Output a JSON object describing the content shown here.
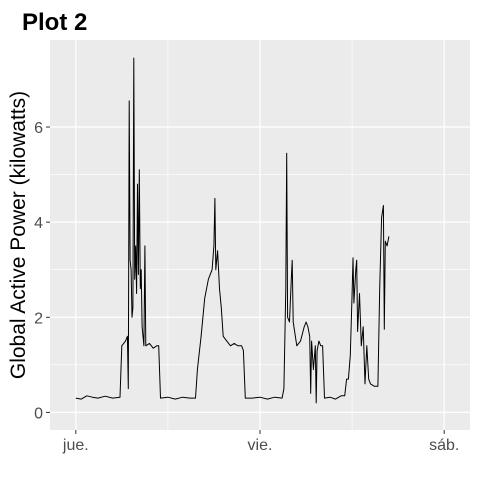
{
  "chart_data": {
    "type": "line",
    "title": "Plot 2",
    "xlabel": "",
    "ylabel": "Global Active Power (kilowatts)",
    "x_tick_labels": [
      "jue.",
      "vie.",
      "sáb."
    ],
    "x_range_days": [
      -0.14,
      2.14
    ],
    "x_ticks_days": [
      0,
      1,
      2
    ],
    "y_ticks": [
      0,
      2,
      4,
      6
    ],
    "ylim": [
      -0.37,
      7.83
    ],
    "grid": true,
    "line_color": "#000000",
    "series": [
      {
        "values": [
          [
            0.0,
            0.3
          ],
          [
            0.03,
            0.28
          ],
          [
            0.06,
            0.35
          ],
          [
            0.09,
            0.32
          ],
          [
            0.12,
            0.3
          ],
          [
            0.16,
            0.34
          ],
          [
            0.2,
            0.3
          ],
          [
            0.24,
            0.32
          ],
          [
            0.25,
            1.4
          ],
          [
            0.27,
            1.5
          ],
          [
            0.28,
            1.6
          ],
          [
            0.285,
            0.5
          ],
          [
            0.29,
            6.55
          ],
          [
            0.295,
            3.2
          ],
          [
            0.3,
            3.0
          ],
          [
            0.305,
            2.0
          ],
          [
            0.31,
            2.2
          ],
          [
            0.315,
            7.45
          ],
          [
            0.32,
            2.8
          ],
          [
            0.325,
            3.5
          ],
          [
            0.33,
            2.5
          ],
          [
            0.335,
            4.8
          ],
          [
            0.34,
            2.9
          ],
          [
            0.345,
            5.1
          ],
          [
            0.35,
            2.6
          ],
          [
            0.355,
            3.0
          ],
          [
            0.36,
            1.8
          ],
          [
            0.37,
            1.4
          ],
          [
            0.375,
            3.5
          ],
          [
            0.38,
            1.4
          ],
          [
            0.4,
            1.45
          ],
          [
            0.42,
            1.35
          ],
          [
            0.44,
            1.4
          ],
          [
            0.45,
            1.4
          ],
          [
            0.46,
            0.3
          ],
          [
            0.5,
            0.32
          ],
          [
            0.54,
            0.28
          ],
          [
            0.58,
            0.32
          ],
          [
            0.62,
            0.3
          ],
          [
            0.65,
            0.3
          ],
          [
            0.66,
            0.9
          ],
          [
            0.68,
            1.6
          ],
          [
            0.7,
            2.4
          ],
          [
            0.72,
            2.8
          ],
          [
            0.74,
            3.0
          ],
          [
            0.75,
            3.5
          ],
          [
            0.755,
            4.5
          ],
          [
            0.76,
            3.0
          ],
          [
            0.77,
            3.4
          ],
          [
            0.78,
            2.6
          ],
          [
            0.79,
            2.2
          ],
          [
            0.8,
            1.6
          ],
          [
            0.82,
            1.5
          ],
          [
            0.84,
            1.4
          ],
          [
            0.86,
            1.45
          ],
          [
            0.88,
            1.4
          ],
          [
            0.9,
            1.4
          ],
          [
            0.91,
            1.3
          ],
          [
            0.92,
            0.3
          ],
          [
            0.96,
            0.3
          ],
          [
            1.0,
            0.32
          ],
          [
            1.04,
            0.28
          ],
          [
            1.08,
            0.32
          ],
          [
            1.12,
            0.3
          ],
          [
            1.13,
            0.5
          ],
          [
            1.14,
            2.6
          ],
          [
            1.145,
            5.45
          ],
          [
            1.15,
            2.0
          ],
          [
            1.16,
            1.9
          ],
          [
            1.17,
            2.8
          ],
          [
            1.175,
            3.2
          ],
          [
            1.18,
            1.9
          ],
          [
            1.2,
            1.4
          ],
          [
            1.22,
            1.5
          ],
          [
            1.24,
            1.8
          ],
          [
            1.25,
            1.9
          ],
          [
            1.26,
            1.8
          ],
          [
            1.27,
            1.6
          ],
          [
            1.275,
            0.4
          ],
          [
            1.28,
            1.5
          ],
          [
            1.29,
            0.9
          ],
          [
            1.3,
            1.4
          ],
          [
            1.305,
            0.2
          ],
          [
            1.31,
            1.3
          ],
          [
            1.32,
            1.5
          ],
          [
            1.33,
            1.4
          ],
          [
            1.34,
            1.4
          ],
          [
            1.35,
            0.3
          ],
          [
            1.38,
            0.32
          ],
          [
            1.41,
            0.28
          ],
          [
            1.44,
            0.35
          ],
          [
            1.46,
            0.35
          ],
          [
            1.47,
            0.7
          ],
          [
            1.48,
            0.7
          ],
          [
            1.49,
            1.2
          ],
          [
            1.5,
            2.5
          ],
          [
            1.505,
            3.25
          ],
          [
            1.51,
            2.3
          ],
          [
            1.52,
            3.0
          ],
          [
            1.525,
            3.2
          ],
          [
            1.53,
            1.7
          ],
          [
            1.54,
            2.5
          ],
          [
            1.55,
            1.4
          ],
          [
            1.56,
            1.8
          ],
          [
            1.57,
            0.6
          ],
          [
            1.58,
            1.4
          ],
          [
            1.59,
            0.7
          ],
          [
            1.6,
            0.6
          ],
          [
            1.62,
            0.55
          ],
          [
            1.64,
            0.55
          ],
          [
            1.65,
            2.6
          ],
          [
            1.66,
            4.1
          ],
          [
            1.67,
            4.35
          ],
          [
            1.675,
            1.75
          ],
          [
            1.68,
            3.6
          ],
          [
            1.69,
            3.5
          ],
          [
            1.7,
            3.7
          ]
        ]
      }
    ]
  }
}
